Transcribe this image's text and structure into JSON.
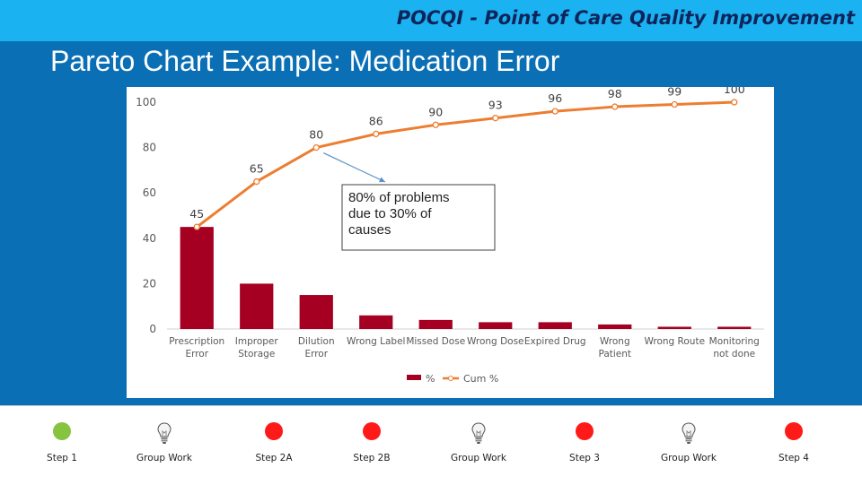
{
  "header": {
    "title": "POCQI - Point of Care Quality Improvement"
  },
  "slide": {
    "title": "Pareto Chart Example: Medication Error"
  },
  "colors": {
    "bar": "#a50021",
    "line": "#ed7d31",
    "accent": "#0b6fb5",
    "header": "#1ab2f0"
  },
  "chart_data": {
    "type": "bar",
    "categories": [
      [
        "Prescription",
        "Error"
      ],
      [
        "Improper",
        "Storage"
      ],
      [
        "Dilution",
        "Error"
      ],
      [
        "Wrong Label"
      ],
      [
        "Missed Dose"
      ],
      [
        "Wrong Dose"
      ],
      [
        "Expired Drug"
      ],
      [
        "Wrong",
        "Patient"
      ],
      [
        "Wrong Route"
      ],
      [
        "Monitoring",
        "not done"
      ]
    ],
    "series": [
      {
        "name": "%",
        "kind": "bar",
        "values": [
          45,
          20,
          15,
          6,
          4,
          3,
          3,
          2,
          1,
          1
        ]
      },
      {
        "name": "Cum %",
        "kind": "line",
        "values": [
          45,
          65,
          80,
          86,
          90,
          93,
          96,
          98,
          99,
          100
        ]
      }
    ],
    "yticks": [
      "0",
      "20",
      "40",
      "60",
      "80",
      "100"
    ],
    "ylim": [
      0,
      100
    ],
    "annotation": {
      "lines": [
        "80% of problems",
        "due to 30% of",
        "causes"
      ],
      "points_to_category_index": 2
    },
    "legend_position": "bottom"
  },
  "steps": [
    {
      "label": "Step 1",
      "kind": "green"
    },
    {
      "label": "Group Work",
      "kind": "bulb"
    },
    {
      "label": "Step 2A",
      "kind": "red"
    },
    {
      "label": "Step 2B",
      "kind": "red"
    },
    {
      "label": "Group Work",
      "kind": "bulb"
    },
    {
      "label": "Step 3",
      "kind": "red"
    },
    {
      "label": "Group Work",
      "kind": "bulb"
    },
    {
      "label": "Step 4",
      "kind": "red"
    }
  ]
}
